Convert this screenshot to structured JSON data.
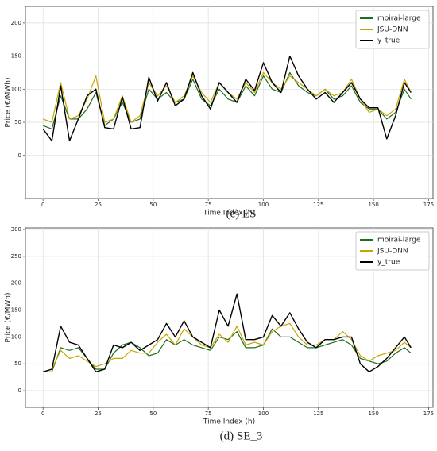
{
  "chart_data": [
    {
      "type": "line",
      "caption": "(c) ES",
      "xlabel": "Time Index (h)",
      "ylabel": "Price (€/MWh)",
      "x": [
        0,
        4,
        8,
        12,
        16,
        20,
        24,
        28,
        32,
        36,
        40,
        44,
        48,
        52,
        56,
        60,
        64,
        68,
        72,
        76,
        80,
        84,
        88,
        92,
        96,
        100,
        104,
        108,
        112,
        116,
        120,
        124,
        128,
        132,
        136,
        140,
        144,
        148,
        152,
        156,
        160,
        164,
        167
      ],
      "xlim": [
        -8,
        177
      ],
      "xticks": [
        0,
        25,
        50,
        75,
        100,
        125,
        150,
        175
      ],
      "ylim": [
        -65,
        225
      ],
      "yticks": [
        0,
        50,
        100,
        150,
        200
      ],
      "grid": true,
      "legend": "upper right",
      "series": [
        {
          "name": "moirai-large",
          "color": "#1f6e1f",
          "values": [
            45,
            40,
            90,
            55,
            55,
            70,
            95,
            45,
            55,
            80,
            50,
            55,
            100,
            85,
            95,
            80,
            85,
            115,
            85,
            75,
            100,
            85,
            80,
            105,
            90,
            120,
            100,
            95,
            125,
            105,
            95,
            90,
            100,
            85,
            90,
            105,
            80,
            70,
            70,
            55,
            65,
            100,
            85
          ]
        },
        {
          "name": "JSU-DNN",
          "color": "#c9a400",
          "values": [
            55,
            50,
            110,
            55,
            60,
            85,
            120,
            50,
            55,
            90,
            50,
            60,
            110,
            90,
            105,
            80,
            90,
            120,
            95,
            80,
            110,
            95,
            85,
            110,
            95,
            125,
            110,
            100,
            120,
            110,
            100,
            90,
            100,
            90,
            95,
            115,
            85,
            65,
            70,
            60,
            70,
            115,
            95
          ]
        },
        {
          "name": "y_true",
          "color": "#000000",
          "values": [
            40,
            22,
            105,
            22,
            55,
            90,
            100,
            42,
            40,
            88,
            40,
            42,
            118,
            82,
            110,
            75,
            85,
            125,
            90,
            70,
            110,
            95,
            80,
            115,
            98,
            140,
            110,
            95,
            150,
            120,
            100,
            85,
            95,
            80,
            95,
            110,
            85,
            72,
            72,
            25,
            60,
            110,
            95
          ]
        }
      ]
    },
    {
      "type": "line",
      "caption": "(d) SE_3",
      "xlabel": "Time Index (h)",
      "ylabel": "Price (€/MWh)",
      "x": [
        0,
        4,
        8,
        12,
        16,
        20,
        24,
        28,
        32,
        36,
        40,
        44,
        48,
        52,
        56,
        60,
        64,
        68,
        72,
        76,
        80,
        84,
        88,
        92,
        96,
        100,
        104,
        108,
        112,
        116,
        120,
        124,
        128,
        132,
        136,
        140,
        144,
        148,
        152,
        156,
        160,
        164,
        167
      ],
      "xlim": [
        -8,
        177
      ],
      "xticks": [
        0,
        25,
        50,
        75,
        100,
        125,
        150,
        175
      ],
      "ylim": [
        -31,
        303
      ],
      "yticks": [
        0,
        50,
        100,
        150,
        200,
        250,
        300
      ],
      "grid": true,
      "legend": "upper right",
      "series": [
        {
          "name": "moirai-large",
          "color": "#1f6e1f",
          "values": [
            35,
            35,
            80,
            75,
            80,
            60,
            40,
            40,
            70,
            85,
            90,
            80,
            65,
            70,
            95,
            85,
            95,
            85,
            80,
            75,
            100,
            95,
            110,
            80,
            80,
            85,
            115,
            100,
            100,
            90,
            80,
            80,
            85,
            90,
            95,
            85,
            60,
            55,
            50,
            55,
            70,
            80,
            70
          ]
        },
        {
          "name": "JSU-DNN",
          "color": "#c9a400",
          "values": [
            35,
            40,
            75,
            60,
            65,
            55,
            45,
            50,
            60,
            60,
            75,
            70,
            70,
            90,
            105,
            85,
            115,
            100,
            85,
            80,
            105,
            90,
            120,
            85,
            90,
            85,
            110,
            120,
            125,
            100,
            85,
            85,
            95,
            95,
            110,
            95,
            65,
            55,
            65,
            70,
            75,
            90,
            80
          ]
        },
        {
          "name": "y_true",
          "color": "#000000",
          "values": [
            35,
            40,
            120,
            90,
            85,
            60,
            35,
            40,
            85,
            80,
            90,
            75,
            85,
            95,
            125,
            100,
            130,
            100,
            90,
            80,
            150,
            120,
            180,
            95,
            95,
            100,
            140,
            120,
            145,
            115,
            90,
            80,
            95,
            95,
            100,
            100,
            50,
            35,
            45,
            60,
            80,
            100,
            80
          ]
        }
      ]
    }
  ]
}
